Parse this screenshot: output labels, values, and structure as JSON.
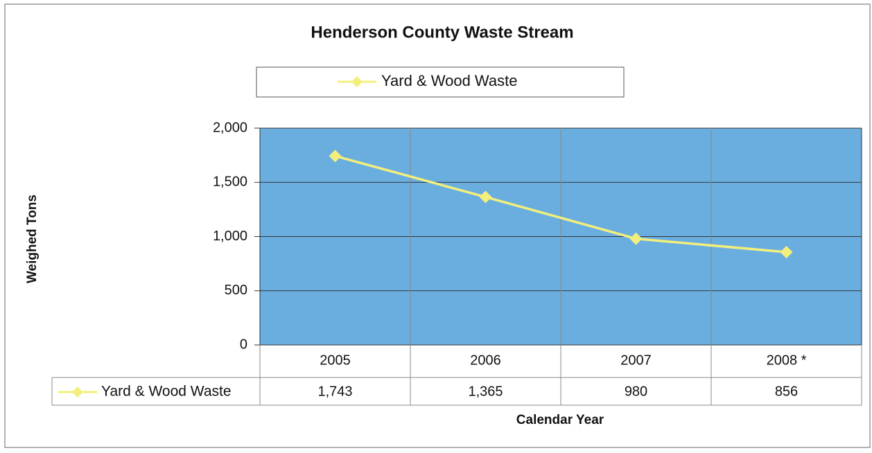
{
  "chart_data": {
    "type": "line",
    "title": "Henderson County Waste Stream",
    "y_label": "Weighed Tons",
    "x_label": "Calendar Year",
    "categories": [
      "2005",
      "2006",
      "2007",
      "2008 *"
    ],
    "series": [
      {
        "name": "Yard & Wood Waste",
        "color": "#f3ef7c",
        "values": [
          1743,
          1365,
          980,
          856
        ],
        "value_labels": [
          "1,743",
          "1,365",
          "980",
          "856"
        ]
      }
    ],
    "ylim": [
      0,
      2000
    ],
    "yticks": [
      0,
      500,
      {
        "value": 1000,
        "label": "1,000"
      },
      {
        "value": 1500,
        "label": "1,500"
      },
      {
        "value": 2000,
        "label": "2,000"
      }
    ],
    "grid": true,
    "legend": "top",
    "plot_background": "#6aaee0"
  }
}
